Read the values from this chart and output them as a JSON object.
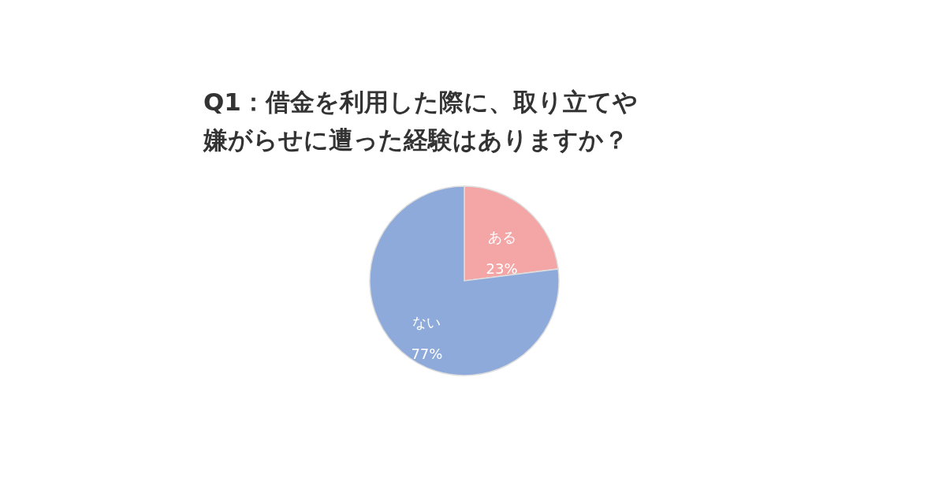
{
  "chart_data": {
    "type": "pie",
    "title": "Q1：借金を利用した際に、取り立てや嫌がらせに遭った経験はありますか？",
    "categories": [
      "ある",
      "ない"
    ],
    "values": [
      23,
      77
    ],
    "colors": [
      "#f4a6a6",
      "#8eaadb"
    ],
    "value_labels": [
      "23%",
      "77%"
    ]
  }
}
